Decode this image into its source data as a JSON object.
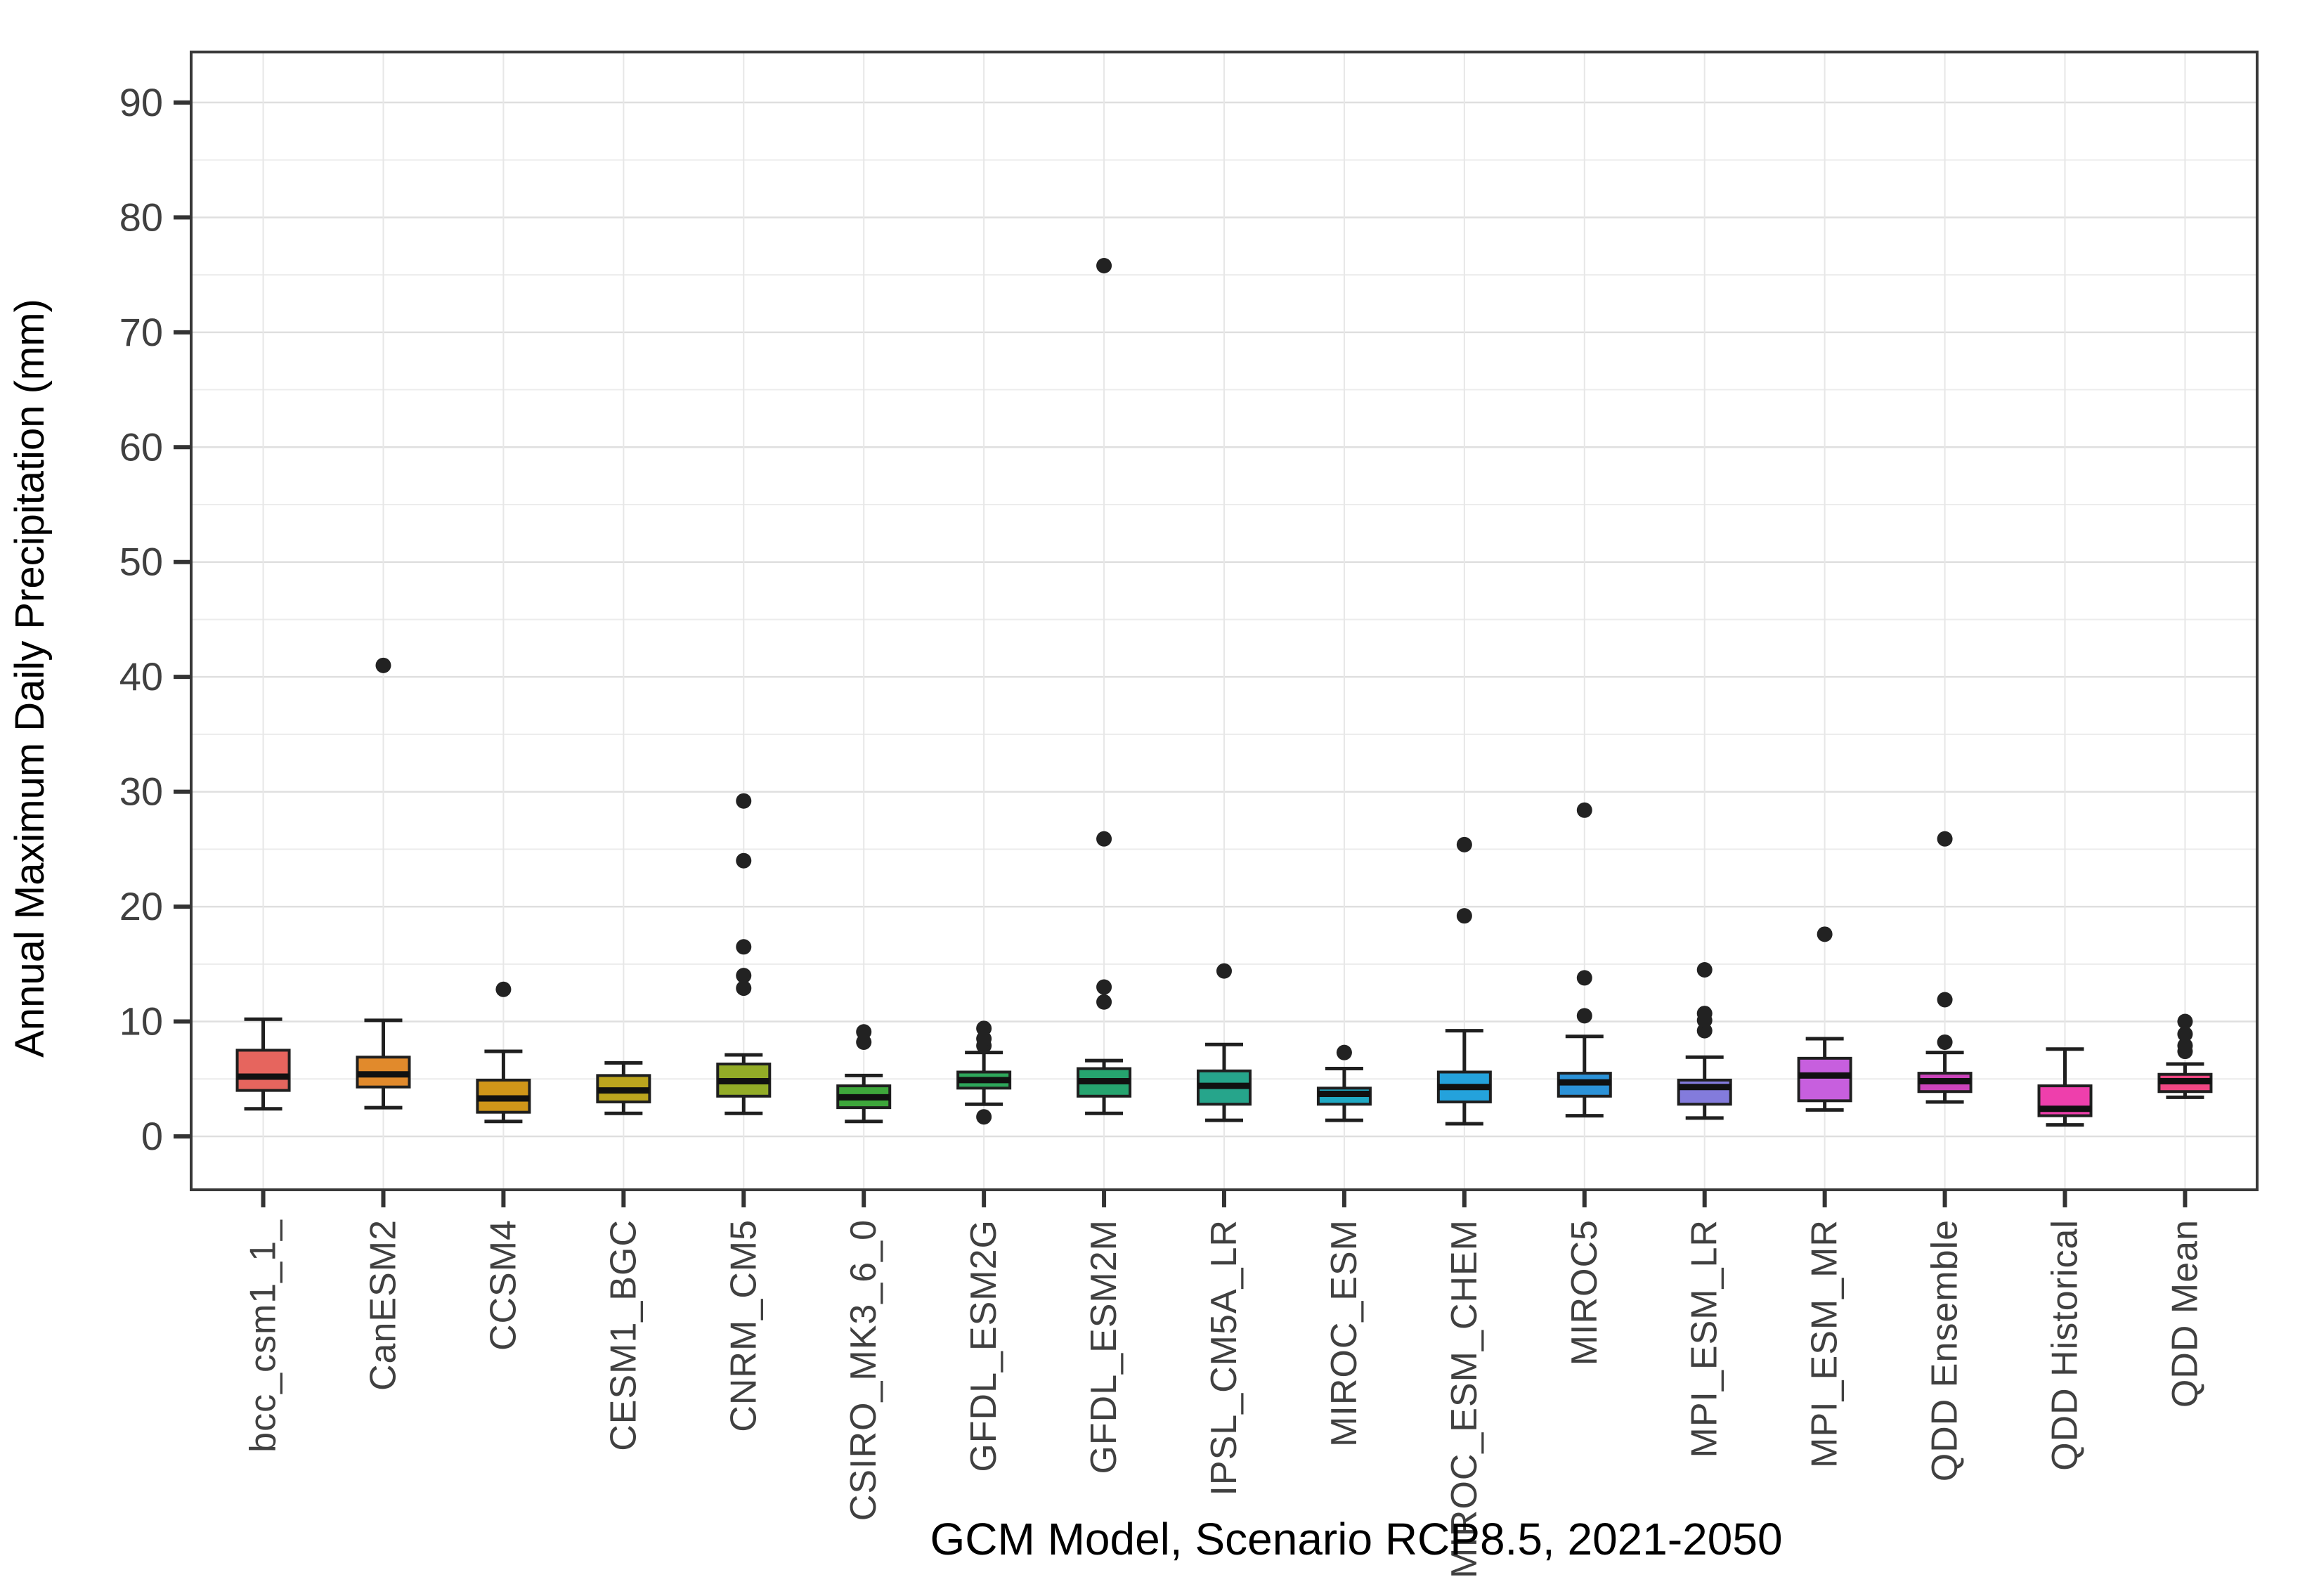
{
  "figure": {
    "background": "#ffffff"
  },
  "chart_data": {
    "type": "boxplot",
    "title": "",
    "xlabel": "GCM Model, Scenario RCP8.5, 2021-2050",
    "ylabel": "Annual Maximum Daily Precipitation (mm)",
    "ylim": [
      -4.65,
      94.4
    ],
    "yticks": [
      0,
      10,
      20,
      30,
      40,
      50,
      60,
      70,
      80,
      90
    ],
    "minor_gridline_step": 5,
    "grid": "major+minor+column-verticals",
    "legend": "none",
    "categories": [
      "bcc_csm1_1_",
      "CanESM2",
      "CCSM4",
      "CESM1_BGC",
      "CNRM_CM5",
      "CSIRO_MK3_6_0",
      "GFDL_ESM2G",
      "GFDL_ESM2M",
      "IPSL_CM5A_LR",
      "MIROC_ESM",
      "MIROC_ESM_CHEM",
      "MIROC5",
      "MPI_ESM_LR",
      "MPI_ESM_MR",
      "QDD Ensemble",
      "QDD Historical",
      "QDD Mean"
    ],
    "series": [
      {
        "label": "bcc_csm1_1_",
        "color": "#e6655e",
        "low": 2.4,
        "q1": 4.0,
        "median": 5.2,
        "q3": 7.5,
        "high": 10.2,
        "outliers": []
      },
      {
        "label": "CanESM2",
        "color": "#e18a2c",
        "low": 2.5,
        "q1": 4.3,
        "median": 5.4,
        "q3": 6.9,
        "high": 10.1,
        "outliers": [
          41.0
        ]
      },
      {
        "label": "CCSM4",
        "color": "#d09619",
        "low": 1.3,
        "q1": 2.1,
        "median": 3.3,
        "q3": 4.9,
        "high": 7.4,
        "outliers": [
          12.8
        ]
      },
      {
        "label": "CESM1_BGC",
        "color": "#bca51e",
        "low": 2.0,
        "q1": 3.0,
        "median": 4.0,
        "q3": 5.3,
        "high": 6.4,
        "outliers": []
      },
      {
        "label": "CNRM_CM5",
        "color": "#93ac27",
        "low": 2.0,
        "q1": 3.5,
        "median": 4.8,
        "q3": 6.3,
        "high": 7.1,
        "outliers": [
          12.9,
          14.0,
          16.5,
          24.0,
          29.2
        ]
      },
      {
        "label": "CSIRO_MK3_6_0",
        "color": "#3ea73b",
        "low": 1.3,
        "q1": 2.5,
        "median": 3.4,
        "q3": 4.4,
        "high": 5.3,
        "outliers": [
          8.2,
          9.1
        ]
      },
      {
        "label": "GFDL_ESM2G",
        "color": "#2ea65a",
        "low": 2.8,
        "q1": 4.2,
        "median": 4.9,
        "q3": 5.6,
        "high": 7.3,
        "outliers": [
          1.7,
          7.9,
          8.5,
          9.4
        ]
      },
      {
        "label": "GFDL_ESM2M",
        "color": "#26a46f",
        "low": 2.0,
        "q1": 3.5,
        "median": 4.8,
        "q3": 5.9,
        "high": 6.6,
        "outliers": [
          11.7,
          13.0,
          25.9,
          75.8
        ]
      },
      {
        "label": "IPSL_CM5A_LR",
        "color": "#26a58b",
        "low": 1.4,
        "q1": 2.8,
        "median": 4.4,
        "q3": 5.7,
        "high": 8.0,
        "outliers": [
          14.4
        ]
      },
      {
        "label": "MIROC_ESM",
        "color": "#1fa9c4",
        "low": 1.4,
        "q1": 2.8,
        "median": 3.7,
        "q3": 4.2,
        "high": 5.9,
        "outliers": [
          7.3
        ]
      },
      {
        "label": "MIROC_ESM_CHEM",
        "color": "#24a2dc",
        "low": 1.1,
        "q1": 3.0,
        "median": 4.3,
        "q3": 5.6,
        "high": 9.2,
        "outliers": [
          19.2,
          25.4
        ]
      },
      {
        "label": "MIROC5",
        "color": "#2b92d8",
        "low": 1.8,
        "q1": 3.5,
        "median": 4.7,
        "q3": 5.5,
        "high": 8.7,
        "outliers": [
          10.5,
          13.8,
          28.4
        ]
      },
      {
        "label": "MPI_ESM_LR",
        "color": "#837bdc",
        "low": 1.6,
        "q1": 2.8,
        "median": 4.3,
        "q3": 4.9,
        "high": 6.9,
        "outliers": [
          9.2,
          10.1,
          10.7,
          14.5
        ]
      },
      {
        "label": "MPI_ESM_MR",
        "color": "#c75fde",
        "low": 2.3,
        "q1": 3.1,
        "median": 5.3,
        "q3": 6.8,
        "high": 8.5,
        "outliers": [
          17.6
        ]
      },
      {
        "label": "QDD Ensemble",
        "color": "#cc44bb",
        "low": 3.0,
        "q1": 3.9,
        "median": 4.8,
        "q3": 5.5,
        "high": 7.3,
        "outliers": [
          8.2,
          11.9,
          25.9
        ]
      },
      {
        "label": "QDD Historical",
        "color": "#ee3fac",
        "low": 1.0,
        "q1": 1.8,
        "median": 2.4,
        "q3": 4.4,
        "high": 7.6,
        "outliers": []
      },
      {
        "label": "QDD Mean",
        "color": "#f04783",
        "low": 3.4,
        "q1": 3.9,
        "median": 4.8,
        "q3": 5.4,
        "high": 6.3,
        "outliers": [
          7.4,
          7.9,
          8.9,
          10.0
        ]
      }
    ],
    "styles": {
      "box_stroke": "#1f1f1f",
      "outlier_color": "#222222",
      "grid_major": "#dfdfdf",
      "grid_minor": "#ececec",
      "panel_border": "#383838",
      "tick_label_color": "#404040",
      "axis_title_color": "#000000"
    }
  }
}
